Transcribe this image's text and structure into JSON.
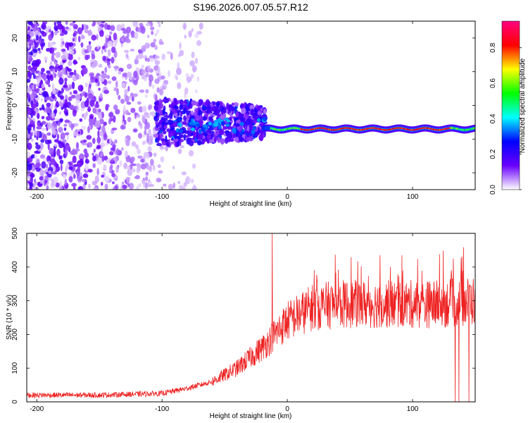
{
  "chart_data": [
    {
      "type": "heatmap",
      "title": "S196.2026.007.05.57.R12",
      "xlabel": "Height of straight line (km)",
      "ylabel": "Frequency (Hz)",
      "xlim": [
        -208,
        150
      ],
      "ylim": [
        -25,
        25
      ],
      "xticks": [
        -200,
        -100,
        0,
        100
      ],
      "yticks": [
        -20,
        -10,
        0,
        10,
        20
      ],
      "colorbar": {
        "label": "Normalized spectral amplitude",
        "range": [
          0.0,
          0.95
        ],
        "ticks": [
          0.0,
          0.2,
          0.4,
          0.6,
          0.8
        ],
        "colors": [
          "#ffffff",
          "#6a00ff",
          "#0000ff",
          "#00ffff",
          "#00ff00",
          "#ffff00",
          "#ff0000",
          "#ff0080"
        ]
      },
      "ridge": {
        "description_free": true,
        "segments": [
          {
            "x": [
              -100,
              -60
            ],
            "freq": -4
          },
          {
            "x": [
              -60,
              -20
            ],
            "freq": -5.5
          },
          {
            "x": [
              -20,
              150
            ],
            "freq": -7
          }
        ]
      }
    },
    {
      "type": "line",
      "xlabel": "Height of straight line (km)",
      "ylabel": "SNR (10 * v/v)",
      "xlim": [
        -208,
        150
      ],
      "ylim": [
        0,
        500
      ],
      "xticks": [
        -200,
        -100,
        0,
        100
      ],
      "yticks": [
        0,
        100,
        200,
        300,
        400,
        500
      ],
      "color": "#ee2222",
      "trend": {
        "x": [
          -208,
          -150,
          -100,
          -80,
          -60,
          -40,
          -20,
          -10,
          0,
          10,
          20,
          40,
          60,
          80,
          100,
          120,
          150
        ],
        "y": [
          20,
          20,
          25,
          40,
          60,
          100,
          160,
          200,
          240,
          260,
          280,
          290,
          290,
          290,
          290,
          290,
          300
        ]
      },
      "spikes": [
        {
          "x": -12,
          "y": 500
        },
        {
          "x": 134,
          "y": 0
        },
        {
          "x": 137,
          "y": 0
        },
        {
          "x": 145,
          "y": 0
        }
      ]
    }
  ]
}
